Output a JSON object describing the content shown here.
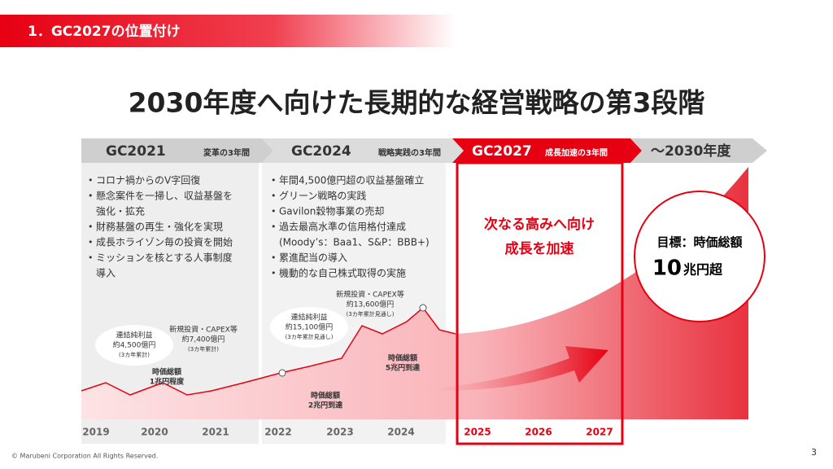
{
  "header": {
    "section": "1．GC2027の位置付け"
  },
  "title": "2030年度へ向けた長期的な経営戦略の第3段階",
  "phases": [
    {
      "name": "GC2021",
      "sub": "変革の3年間",
      "bullets": [
        "コロナ禍からのV字回復",
        "懸念案件を一掃し、収益基盤を",
        "強化・拡充",
        "財務基盤の再生・強化を実現",
        "成長ホライゾン毎の投資を開始",
        "ミッションを核とする人事制度",
        "導入"
      ]
    },
    {
      "name": "GC2024",
      "sub": "戦略実践の3年間",
      "bullets": [
        "年間4,500億円超の収益基盤確立",
        "グリーン戦略の実践",
        "Gavilon穀物事業の売却",
        "過去最高水準の信用格付達成",
        "(Moody’s：Baa1、S&P：BBB+)",
        "累進配当の導入",
        "機動的な自己株式取得の実施"
      ]
    },
    {
      "name": "GC2027",
      "sub": "成長加速の3年間",
      "message": [
        "次なる高みへ向け",
        "成長を加速"
      ]
    },
    {
      "name": "～2030年度"
    }
  ],
  "target": {
    "label": "目標：時価総額",
    "value": "10",
    "unit": "兆円超"
  },
  "annotations": [
    {
      "lines": [
        "連結純利益",
        "約4,500億円",
        "(3カ年累計)"
      ]
    },
    {
      "lines": [
        "新規投資・CAPEX等",
        "約7,400億円",
        "(3カ年累計)"
      ]
    },
    {
      "lines": [
        "時価総額",
        "1兆円程度"
      ]
    },
    {
      "lines": [
        "連結純利益",
        "約15,100億円",
        "(3カ年累計見通し)"
      ]
    },
    {
      "lines": [
        "新規投資・CAPEX等",
        "約13,600億円",
        "(3カ年累計見通し)"
      ]
    },
    {
      "lines": [
        "時価総額",
        "2兆円到達"
      ]
    },
    {
      "lines": [
        "時価総額",
        "5兆円到達"
      ]
    }
  ],
  "years": [
    "2019",
    "2020",
    "2021",
    "2022",
    "2023",
    "2024",
    "2025",
    "2026",
    "2027"
  ],
  "footer": {
    "copyright": "© Marubeni Corporation All Rights Reserved.",
    "page": "3"
  }
}
